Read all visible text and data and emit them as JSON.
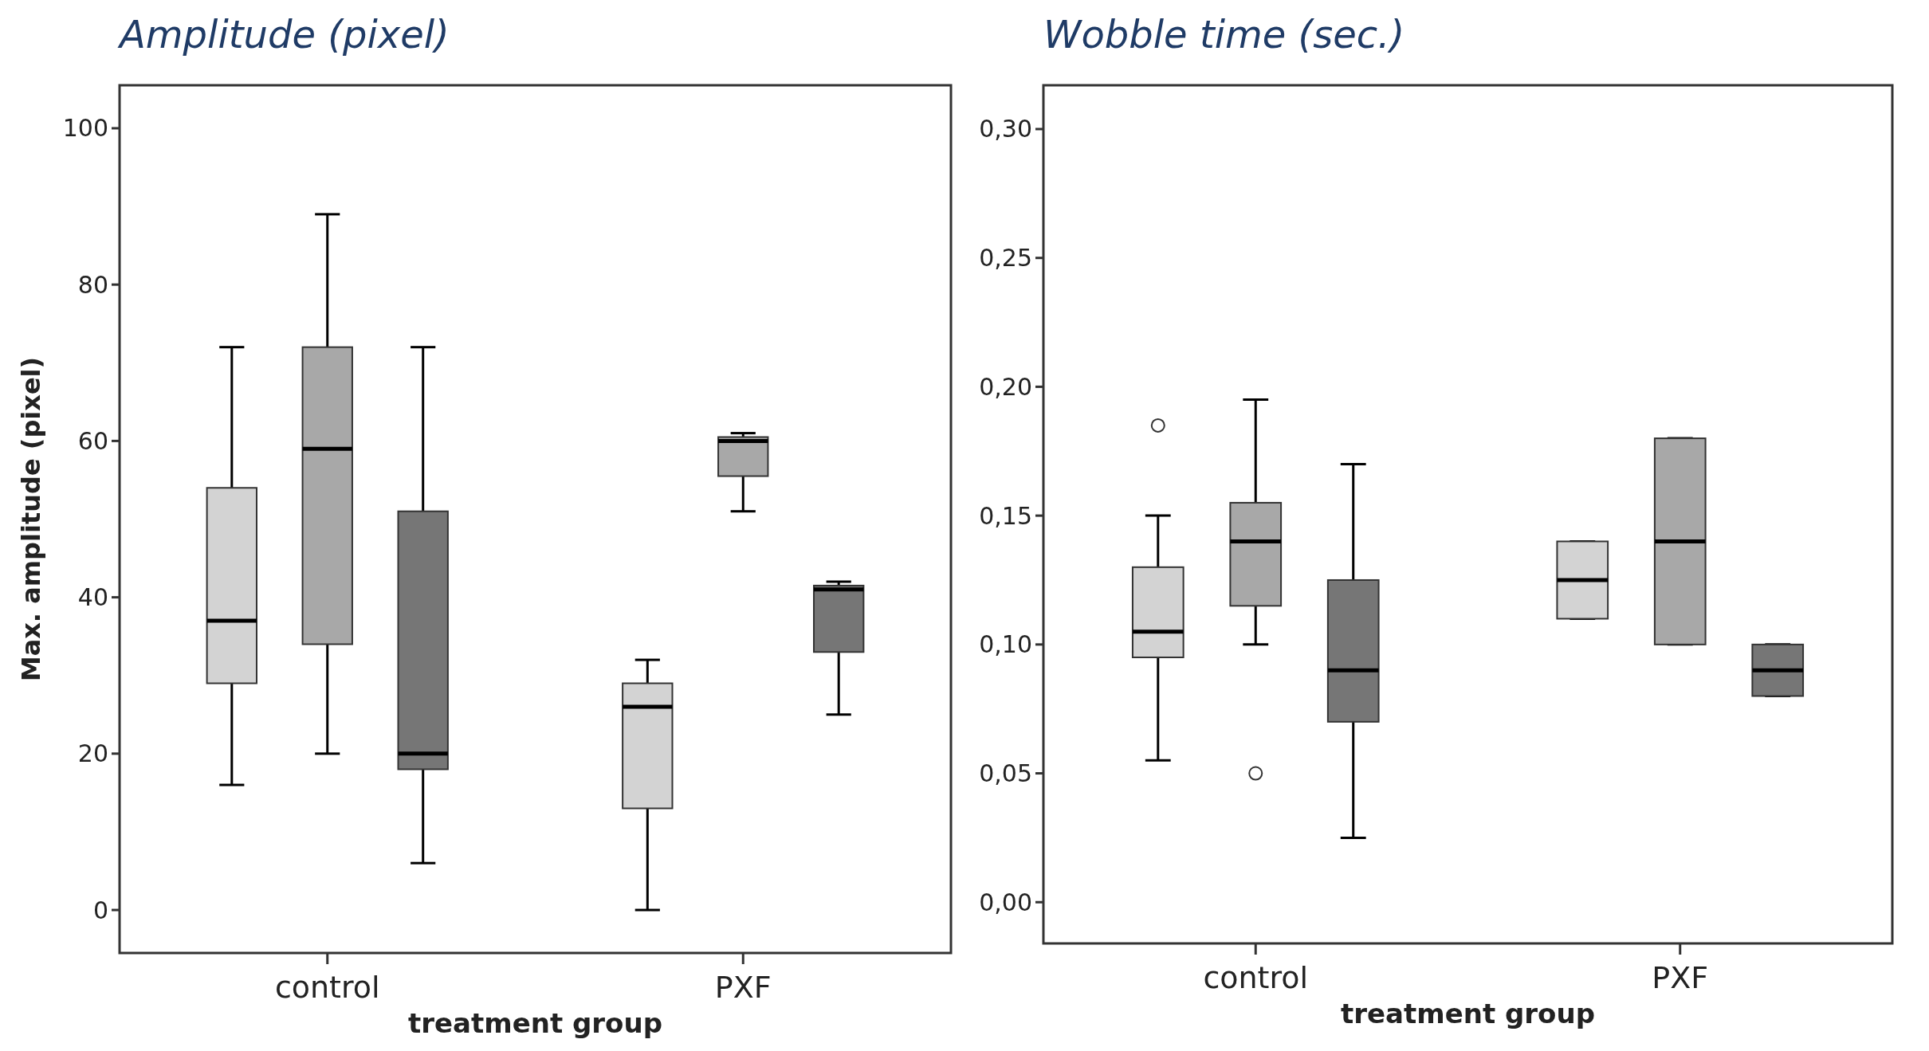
{
  "chart_data": [
    {
      "type": "box",
      "title": "Amplitude (pixel)",
      "xlabel": "treatment group",
      "ylabel": "Max. amplitude (pixel)",
      "categories": [
        "control",
        "PXF"
      ],
      "ylim": [
        -5.5,
        105.5
      ],
      "yticks": [
        0,
        20,
        40,
        60,
        80,
        100
      ],
      "grid": false,
      "series": [
        {
          "color": "#d3d3d3",
          "boxes": [
            {
              "low": 16,
              "q1": 29,
              "median": 37,
              "q3": 54,
              "high": 72
            },
            {
              "low": 0,
              "q1": 13,
              "median": 26,
              "q3": 29,
              "high": 32
            }
          ]
        },
        {
          "color": "#a8a8a8",
          "boxes": [
            {
              "low": 20,
              "q1": 34,
              "median": 59,
              "q3": 72,
              "high": 89
            },
            {
              "low": 51,
              "q1": 55.5,
              "median": 60,
              "q3": 60.5,
              "high": 61
            }
          ]
        },
        {
          "color": "#767676",
          "boxes": [
            {
              "low": 6,
              "q1": 18,
              "median": 20,
              "q3": 51,
              "high": 72
            },
            {
              "low": 25,
              "q1": 33,
              "median": 41,
              "q3": 41.5,
              "high": 42
            }
          ]
        }
      ]
    },
    {
      "type": "box",
      "title": "Wobble time (sec.)",
      "xlabel": "treatment group",
      "categories": [
        "control",
        "PXF"
      ],
      "ylim": [
        -0.016,
        0.317
      ],
      "yticks": [
        {
          "value": 0,
          "label": "0,00"
        },
        {
          "value": 0.05,
          "label": "0,05"
        },
        {
          "value": 0.1,
          "label": "0,10"
        },
        {
          "value": 0.15,
          "label": "0,15"
        },
        {
          "value": 0.2,
          "label": "0,20"
        },
        {
          "value": 0.25,
          "label": "0,25"
        },
        {
          "value": 0.3,
          "label": "0,30"
        }
      ],
      "grid": false,
      "series": [
        {
          "color": "#d3d3d3",
          "boxes": [
            {
              "low": 0.055,
              "q1": 0.095,
              "median": 0.105,
              "q3": 0.13,
              "high": 0.15,
              "outliers": [
                0.185
              ]
            },
            {
              "low": 0.11,
              "q1": 0.11,
              "median": 0.125,
              "q3": 0.14,
              "high": 0.14
            }
          ]
        },
        {
          "color": "#a8a8a8",
          "boxes": [
            {
              "low": 0.1,
              "q1": 0.115,
              "median": 0.14,
              "q3": 0.155,
              "high": 0.195,
              "outliers": [
                0.05
              ]
            },
            {
              "low": 0.1,
              "q1": 0.1,
              "median": 0.14,
              "q3": 0.18,
              "high": 0.18
            }
          ]
        },
        {
          "color": "#767676",
          "boxes": [
            {
              "low": 0.025,
              "q1": 0.07,
              "median": 0.09,
              "q3": 0.125,
              "high": 0.17
            },
            {
              "low": 0.08,
              "q1": 0.08,
              "median": 0.09,
              "q3": 0.1,
              "high": 0.1
            }
          ]
        }
      ]
    }
  ]
}
